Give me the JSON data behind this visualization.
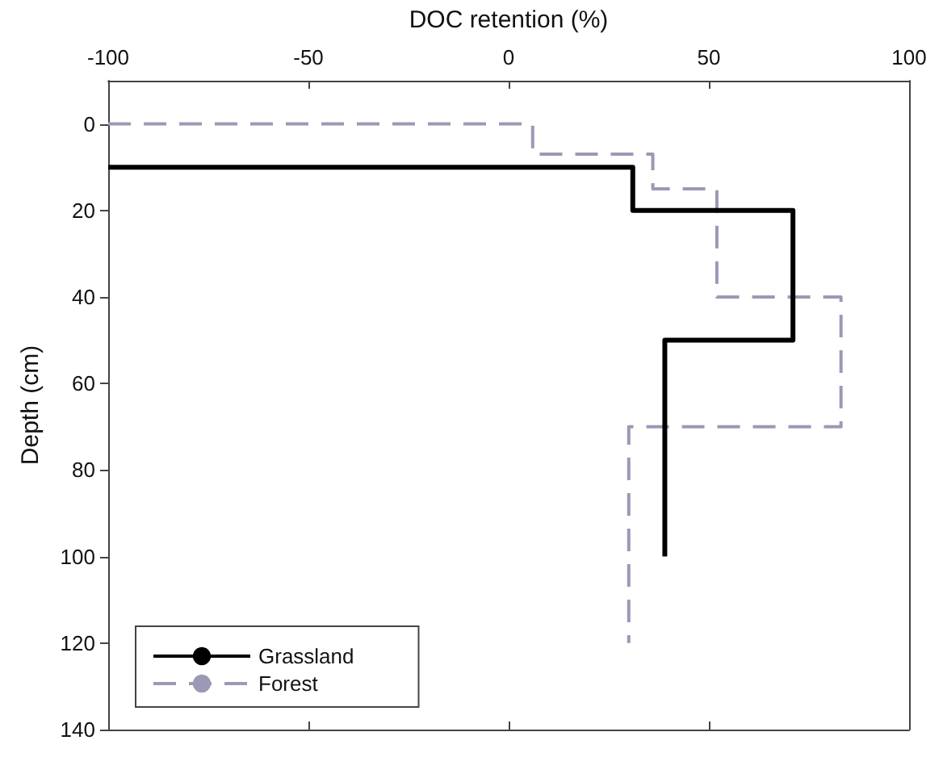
{
  "chart_data": {
    "type": "line",
    "xlabel": "DOC retention (%)",
    "ylabel": "Depth (cm)",
    "xlim": [
      -100,
      100
    ],
    "xticks": [
      -100,
      -50,
      0,
      50,
      100
    ],
    "ylim": [
      140,
      -10
    ],
    "yticks": [
      0,
      20,
      40,
      60,
      80,
      100,
      120,
      140
    ],
    "legend": "bottom left",
    "grid": false,
    "series": [
      {
        "name": "Grassland",
        "color": "#000000",
        "line_style": "solid",
        "x": [
          -100,
          31,
          31,
          71,
          71,
          39,
          39
        ],
        "values": [
          10,
          10,
          20,
          20,
          50,
          50,
          100
        ]
      },
      {
        "name": "Forest",
        "color": "#9a9ab6",
        "line_style": "dashed",
        "x": [
          -100,
          6,
          6,
          36,
          36,
          52,
          52,
          83,
          83,
          30,
          30
        ],
        "values": [
          0,
          0,
          7,
          7,
          15,
          15,
          40,
          40,
          70,
          70,
          120
        ]
      }
    ]
  }
}
